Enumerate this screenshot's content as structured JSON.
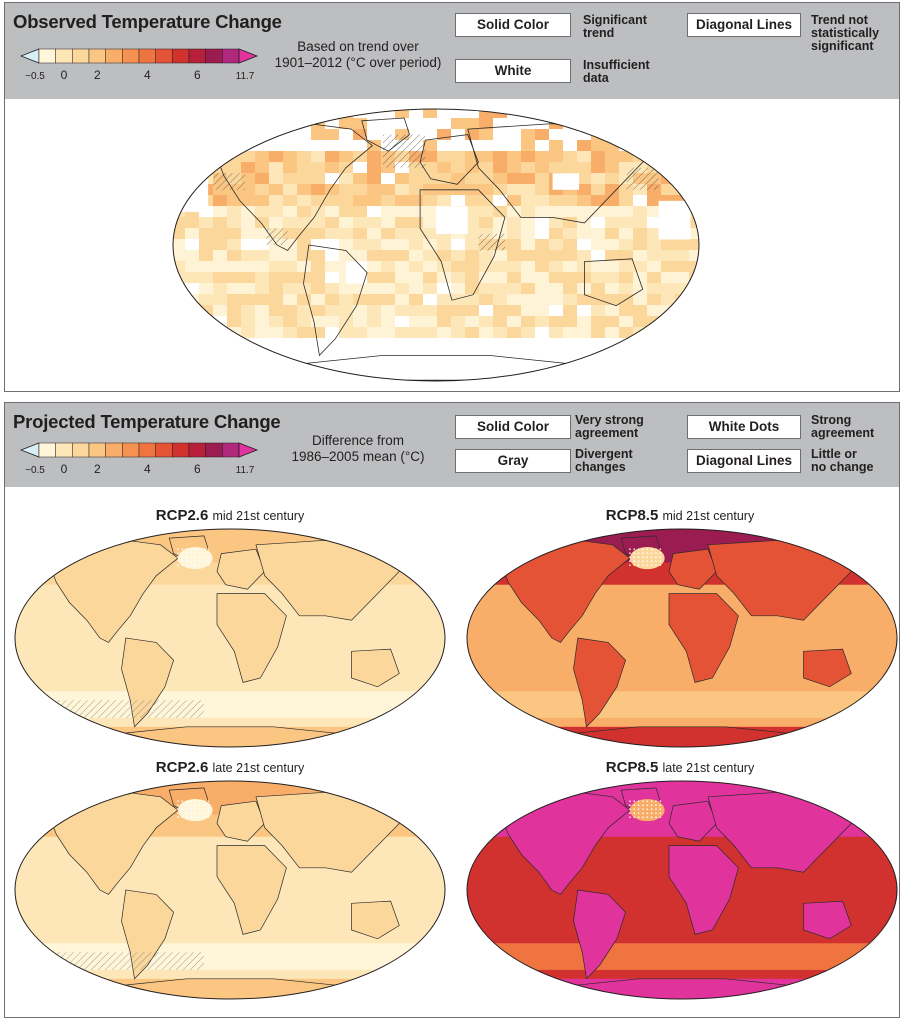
{
  "observed": {
    "title": "Observed Temperature Change",
    "basis_lines": [
      "Based on trend over",
      "1901–2012 (°C over period)"
    ],
    "legend": [
      {
        "box": "Solid Color",
        "desc": [
          "Significant",
          "trend"
        ]
      },
      {
        "box": "White",
        "desc": [
          "Insufficient",
          "data"
        ]
      },
      {
        "box": "Diagonal Lines",
        "desc": [
          "Trend not",
          "statistically",
          "significant"
        ]
      }
    ]
  },
  "projected": {
    "title": "Projected Temperature Change",
    "basis_lines": [
      "Difference from",
      "1986–2005 mean (°C)"
    ],
    "legend": [
      {
        "box": "Solid Color",
        "desc": [
          "Very strong",
          "agreement"
        ]
      },
      {
        "box": "Gray",
        "desc": [
          "Divergent",
          "changes"
        ]
      },
      {
        "box": "White Dots",
        "desc": [
          "Strong",
          "agreement"
        ]
      },
      {
        "box": "Diagonal Lines",
        "desc": [
          "Little or",
          "no change"
        ]
      }
    ],
    "maps": [
      {
        "scenario": "RCP2.6",
        "period": "mid 21st century",
        "level": 0.1
      },
      {
        "scenario": "RCP8.5",
        "period": "mid 21st century",
        "level": 0.55
      },
      {
        "scenario": "RCP2.6",
        "period": "late 21st century",
        "level": 0.12
      },
      {
        "scenario": "RCP8.5",
        "period": "late 21st century",
        "level": 1.0
      }
    ]
  },
  "colorbar": {
    "tick_labels": [
      "−0.5",
      "0",
      "2",
      "4",
      "6",
      "11.7"
    ],
    "colors": [
      "#d7eef4",
      "#fff5d8",
      "#fde7b8",
      "#fcd79c",
      "#fbc582",
      "#f8ad68",
      "#f59252",
      "#ef7440",
      "#e45335",
      "#d2322f",
      "#b71f3b",
      "#9b1c50",
      "#b0287c",
      "#e0339b"
    ]
  },
  "colors": {
    "header": "#bcbec0",
    "border": "#6d6e71",
    "ocean_cool": "#fbe4b4",
    "land_outline": "#2a2a2a"
  }
}
